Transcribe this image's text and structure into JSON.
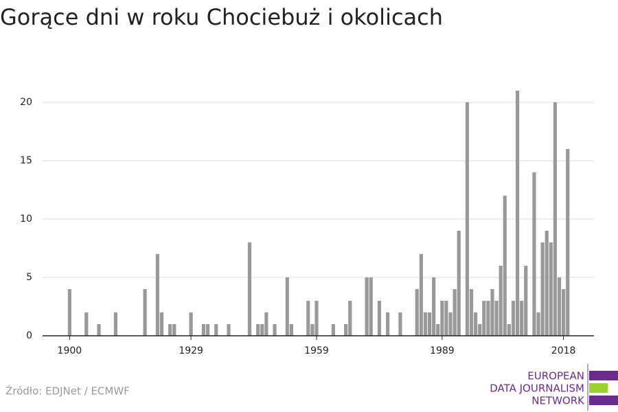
{
  "chart_data": {
    "type": "bar",
    "title": "Gorące dni w roku Chociebuż i okolicach",
    "x": [
      1900,
      1904,
      1907,
      1911,
      1918,
      1921,
      1922,
      1924,
      1925,
      1929,
      1932,
      1933,
      1935,
      1938,
      1943,
      1945,
      1946,
      1947,
      1949,
      1952,
      1953,
      1957,
      1958,
      1959,
      1963,
      1966,
      1967,
      1971,
      1972,
      1974,
      1976,
      1979,
      1983,
      1984,
      1985,
      1986,
      1987,
      1988,
      1989,
      1990,
      1991,
      1992,
      1993,
      1995,
      1996,
      1997,
      1998,
      1999,
      2000,
      2001,
      2002,
      2003,
      2004,
      2005,
      2006,
      2007,
      2008,
      2009,
      2011,
      2012,
      2013,
      2014,
      2015,
      2016,
      2017,
      2018,
      2019
    ],
    "values": [
      4,
      2,
      1,
      2,
      4,
      7,
      2,
      1,
      1,
      2,
      1,
      1,
      1,
      1,
      8,
      1,
      1,
      2,
      1,
      5,
      1,
      3,
      1,
      3,
      1,
      1,
      3,
      5,
      5,
      3,
      2,
      2,
      4,
      7,
      2,
      2,
      5,
      1,
      3,
      3,
      2,
      4,
      9,
      20,
      4,
      2,
      1,
      3,
      3,
      4,
      3,
      6,
      12,
      1,
      3,
      21,
      3,
      6,
      14,
      2,
      8,
      9,
      8,
      20,
      5,
      4,
      16
    ],
    "color": "#999999",
    "xlim": [
      1896,
      2022
    ],
    "xticks": [
      1900,
      1929,
      1959,
      1989,
      2018
    ],
    "ylim": [
      0,
      22
    ],
    "yticks": [
      0,
      5,
      10,
      15,
      20
    ],
    "grid": true,
    "source": "Źródło: EDJNet / ECMWF"
  },
  "logo": {
    "lines": [
      "EUROPEAN",
      "DATA JOURNALISM",
      "NETWORK"
    ]
  }
}
